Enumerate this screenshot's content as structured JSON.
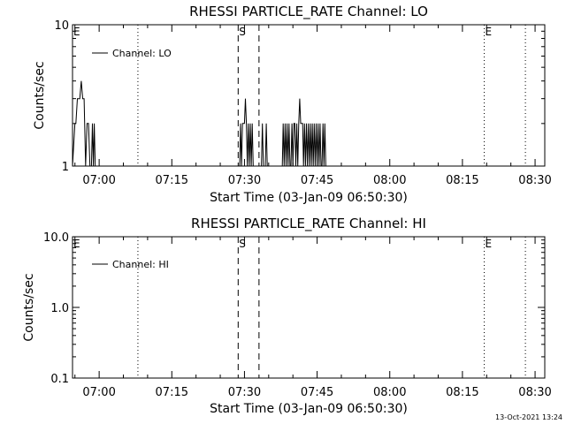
{
  "footer": {
    "timestamp": "13-Oct-2021 13:24"
  },
  "chart_data": [
    {
      "type": "line",
      "title": "RHESSI PARTICLE_RATE Channel: LO",
      "xlabel": "Start Time (03-Jan-09 06:50:30)",
      "ylabel": "Counts/sec",
      "x_unit": "minutes after 06:50",
      "xlim": [
        4.5,
        102
      ],
      "ylim": [
        1,
        10
      ],
      "yscale": "log",
      "x_ticks": [
        {
          "x": 10,
          "label": "07:00"
        },
        {
          "x": 25,
          "label": "07:15"
        },
        {
          "x": 40,
          "label": "07:30"
        },
        {
          "x": 55,
          "label": "07:45"
        },
        {
          "x": 70,
          "label": "08:00"
        },
        {
          "x": 85,
          "label": "08:15"
        },
        {
          "x": 100,
          "label": "08:30"
        }
      ],
      "y_ticks": [
        {
          "y": 1,
          "label": "1"
        },
        {
          "y": 10,
          "label": "10"
        }
      ],
      "grid": false,
      "legend": "top-left",
      "series": [
        {
          "name": "Channel: LO",
          "x": [
            4.5,
            5.0,
            5.2,
            5.5,
            5.8,
            6.0,
            6.3,
            6.6,
            6.9,
            7.2,
            7.5,
            7.8,
            8.1,
            8.4,
            8.6,
            8.8,
            9.0,
            9.2,
            9.4,
            9.6,
            9.8,
            10.0,
            39.0,
            39.2,
            39.4,
            39.6,
            39.8,
            40.0,
            40.2,
            40.4,
            40.6,
            40.8,
            41.0,
            41.2,
            41.4,
            41.6,
            41.8,
            42.0,
            43.5,
            43.7,
            43.9,
            44.3,
            44.5,
            44.7,
            47.8,
            48.0,
            48.2,
            48.4,
            48.6,
            48.8,
            49.0,
            49.2,
            49.4,
            49.6,
            49.8,
            50.0,
            50.2,
            50.4,
            50.6,
            50.8,
            51.0,
            51.2,
            51.4,
            51.6,
            51.8,
            52.0,
            52.2,
            52.4,
            52.6,
            52.8,
            53.0,
            53.2,
            53.4,
            53.6,
            53.8,
            54.0,
            54.2,
            54.4,
            54.6,
            54.8,
            55.0,
            55.2,
            55.4,
            55.6,
            55.8,
            56.0,
            56.2,
            56.4,
            56.6,
            56.8,
            57.0,
            57.2,
            57.4
          ],
          "y": [
            1,
            2,
            2,
            3,
            3,
            3,
            4,
            3,
            3,
            1,
            2,
            2,
            1,
            1,
            2,
            1,
            2,
            1,
            1,
            1,
            1,
            1,
            1,
            2,
            1,
            2,
            2,
            2,
            3,
            2,
            1,
            2,
            1,
            2,
            1,
            2,
            1,
            1,
            1,
            2,
            1,
            1,
            2,
            1,
            1,
            2,
            1,
            2,
            1,
            2,
            1,
            2,
            1,
            1,
            2,
            1,
            2,
            2,
            1,
            2,
            1,
            2,
            3,
            2,
            2,
            2,
            1,
            2,
            1,
            2,
            1,
            2,
            1,
            2,
            1,
            2,
            1,
            2,
            1,
            2,
            1,
            2,
            1,
            2,
            1,
            1,
            2,
            1,
            2,
            1,
            1,
            1,
            1
          ]
        }
      ],
      "annotations": [
        {
          "label": "E",
          "x": 4.5,
          "line": "none"
        },
        {
          "label": "",
          "x": 18.0,
          "line": "dotted"
        },
        {
          "label": "S",
          "x": 38.7,
          "line": "dashed"
        },
        {
          "label": "",
          "x": 43.0,
          "line": "dashed"
        },
        {
          "label": "E",
          "x": 89.5,
          "line": "dotted"
        },
        {
          "label": "",
          "x": 98.0,
          "line": "dotted"
        }
      ]
    },
    {
      "type": "line",
      "title": "RHESSI PARTICLE_RATE Channel: HI",
      "xlabel": "Start Time (03-Jan-09 06:50:30)",
      "ylabel": "Counts/sec",
      "x_unit": "minutes after 06:50",
      "xlim": [
        4.5,
        102
      ],
      "ylim": [
        0.1,
        10
      ],
      "yscale": "log",
      "x_ticks": [
        {
          "x": 10,
          "label": "07:00"
        },
        {
          "x": 25,
          "label": "07:15"
        },
        {
          "x": 40,
          "label": "07:30"
        },
        {
          "x": 55,
          "label": "07:45"
        },
        {
          "x": 70,
          "label": "08:00"
        },
        {
          "x": 85,
          "label": "08:15"
        },
        {
          "x": 100,
          "label": "08:30"
        }
      ],
      "y_ticks": [
        {
          "y": 0.1,
          "label": "0.1"
        },
        {
          "y": 1,
          "label": "1.0"
        },
        {
          "y": 10,
          "label": "10.0"
        }
      ],
      "grid": false,
      "legend": "top-left",
      "series": [
        {
          "name": "Channel: HI",
          "x": [],
          "y": []
        }
      ],
      "annotations": [
        {
          "label": "E",
          "x": 4.5,
          "line": "none"
        },
        {
          "label": "",
          "x": 18.0,
          "line": "dotted"
        },
        {
          "label": "S",
          "x": 38.7,
          "line": "dashed"
        },
        {
          "label": "",
          "x": 43.0,
          "line": "dashed"
        },
        {
          "label": "E",
          "x": 89.5,
          "line": "dotted"
        },
        {
          "label": "",
          "x": 98.0,
          "line": "dotted"
        }
      ]
    }
  ]
}
